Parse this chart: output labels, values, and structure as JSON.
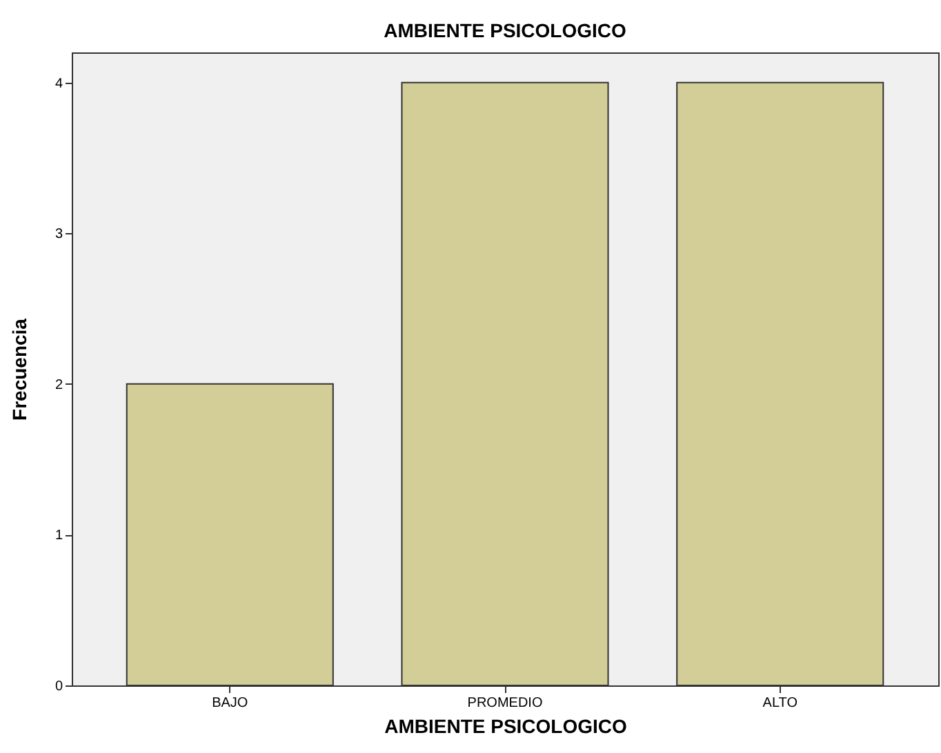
{
  "chart_data": {
    "type": "bar",
    "title": "AMBIENTE PSICOLOGICO",
    "xlabel": "AMBIENTE PSICOLOGICO",
    "ylabel": "Frecuencia",
    "categories": [
      "BAJO",
      "PROMEDIO",
      "ALTO"
    ],
    "values": [
      2,
      4,
      4
    ],
    "color": "#d3ce97",
    "ylim": [
      0,
      4.2
    ],
    "yticks": [
      0,
      1,
      2,
      3,
      4
    ]
  }
}
